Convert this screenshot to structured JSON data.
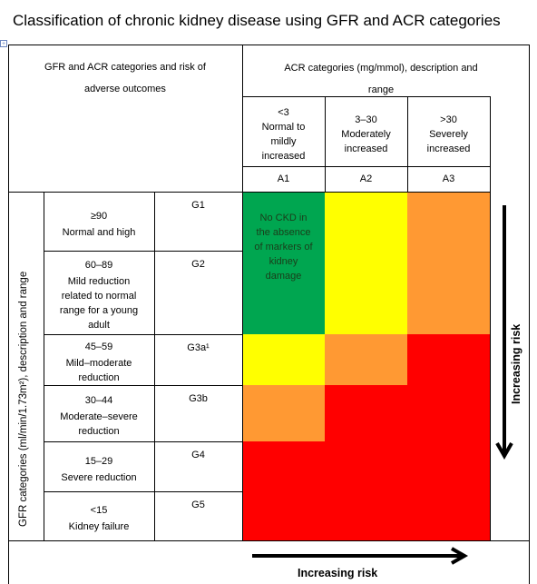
{
  "title": "Classification of chronic kidney disease using GFR and ACR categories",
  "header": {
    "left_title": "GFR and ACR categories and risk of adverse outcomes",
    "acr_title_line1": "ACR categories (mg/mmol), description and",
    "acr_title_line2": "range",
    "acr_categories": [
      {
        "range": "<3",
        "desc": [
          "Normal to",
          "mildly",
          "increased"
        ],
        "code": "A1"
      },
      {
        "range": "3–30",
        "desc": [
          "Moderately",
          "increased"
        ],
        "code": "A2"
      },
      {
        "range": ">30",
        "desc": [
          "Severely",
          "increased"
        ],
        "code": "A3"
      }
    ]
  },
  "gfr_axis_label": "GFR categories (ml/min/1.73m²), description and range",
  "gfr_rows": [
    {
      "range": "≥90",
      "desc": [
        "Normal and high"
      ],
      "code": "G1"
    },
    {
      "range": "60–89",
      "desc": [
        "Mild reduction",
        "related to normal",
        "range for a young",
        "adult"
      ],
      "code": "G2"
    },
    {
      "range": "45–59",
      "desc": [
        "Mild–moderate",
        "reduction"
      ],
      "code": "G3a¹"
    },
    {
      "range": "30–44",
      "desc": [
        "Moderate–severe",
        "reduction"
      ],
      "code": "G3b"
    },
    {
      "range": "15–29",
      "desc": [
        "Severe reduction"
      ],
      "code": "G4"
    },
    {
      "range": "<15",
      "desc": [
        "Kidney failure"
      ],
      "code": "G5"
    }
  ],
  "no_ckd_text": [
    "No CKD in",
    "the absence",
    "of markers of",
    "kidney",
    "damage"
  ],
  "colors": {
    "green": "#00a650",
    "yellow": "#ffff00",
    "orange": "#ff9933",
    "red": "#ff0000"
  },
  "grid_colors": [
    [
      "green",
      "yellow",
      "orange"
    ],
    [
      "green",
      "yellow",
      "orange"
    ],
    [
      "yellow",
      "orange",
      "red"
    ],
    [
      "orange",
      "red",
      "red"
    ],
    [
      "red",
      "red",
      "red"
    ],
    [
      "red",
      "red",
      "red"
    ]
  ],
  "risk_label_vertical": "Increasing risk",
  "risk_label_horizontal": "Increasing risk"
}
